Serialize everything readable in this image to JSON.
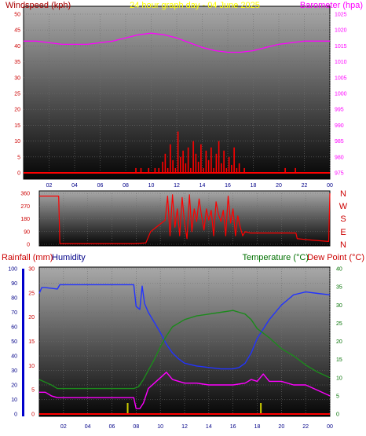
{
  "title": "24 hour graph day - 04 June 2025",
  "colors": {
    "windspeed": "#ff0000",
    "barometer": "#ff00ff",
    "direction": "#ff0000",
    "rainfall": "#cc0000",
    "humidity": "#0000cc",
    "temperature": "#008000",
    "dewpoint": "#cc0000",
    "title": "#ffff00",
    "rain_bar": "#cccc00"
  },
  "chart_data": [
    {
      "type": "line",
      "name": "wind-barometer",
      "title": "24 hour graph day - 04 June 2025",
      "ylabel_left": "Windspeed (kph)",
      "ylabel_right": "Barometer (hpa)",
      "x_ticks": [
        "02",
        "04",
        "06",
        "08",
        "10",
        "12",
        "14",
        "16",
        "18",
        "20",
        "22",
        "00"
      ],
      "xlim": [
        0,
        24
      ],
      "y_left_ticks": [
        "0",
        "5",
        "10",
        "15",
        "20",
        "25",
        "30",
        "35",
        "40",
        "45",
        "50"
      ],
      "ylim_left": [
        0,
        50
      ],
      "y_right_ticks": [
        "975",
        "980",
        "985",
        "990",
        "995",
        "1000",
        "1005",
        "1010",
        "1015",
        "1020",
        "1025"
      ],
      "ylim_right": [
        975,
        1025
      ],
      "grid": true,
      "series": [
        {
          "name": "Barometer (hpa)",
          "axis": "right",
          "x": [
            0,
            1,
            2,
            3,
            4,
            5,
            6,
            7,
            8,
            9,
            10,
            11,
            12,
            13,
            14,
            15,
            16,
            17,
            18,
            19,
            20,
            21,
            22,
            23,
            24
          ],
          "y": [
            1016.5,
            1016.5,
            1016.0,
            1015.5,
            1015.5,
            1015.5,
            1016.0,
            1016.5,
            1017.5,
            1018.5,
            1019.0,
            1018.5,
            1017.5,
            1016.0,
            1014.5,
            1013.5,
            1013.0,
            1013.0,
            1013.5,
            1014.5,
            1015.5,
            1016.0,
            1016.5,
            1016.5,
            1016.5
          ]
        },
        {
          "name": "Windspeed (kph)",
          "axis": "left",
          "x": [
            8.8,
            9.2,
            9.8,
            10.3,
            10.6,
            10.9,
            11.1,
            11.3,
            11.5,
            11.7,
            11.9,
            12.1,
            12.3,
            12.5,
            12.7,
            12.9,
            13.1,
            13.3,
            13.5,
            13.7,
            13.9,
            14.1,
            14.3,
            14.5,
            14.7,
            14.9,
            15.1,
            15.3,
            15.5,
            15.7,
            15.9,
            16.1,
            16.3,
            16.5,
            16.7,
            16.9,
            17.3,
            20.5,
            21.3
          ],
          "y": [
            1.5,
            1.5,
            1.5,
            1.5,
            1.5,
            3.5,
            6,
            1.5,
            9,
            4,
            1.5,
            13,
            5,
            7,
            3,
            8,
            1.5,
            10,
            6,
            3.5,
            9,
            1.5,
            7,
            4,
            8,
            1.5,
            6,
            10,
            3,
            7,
            1.5,
            5,
            2.5,
            8,
            1.5,
            3,
            1.5,
            1.5,
            1.5
          ]
        }
      ]
    },
    {
      "type": "line",
      "name": "wind-direction",
      "y_ticks": [
        "0",
        "90",
        "180",
        "270",
        "360"
      ],
      "ylim": [
        0,
        360
      ],
      "y_labels_right": [
        "N",
        "W",
        "S",
        "E",
        "N"
      ],
      "xlim": [
        0,
        24
      ],
      "series": [
        {
          "name": "Wind direction",
          "x": [
            0,
            1.6,
            1.7,
            7.8,
            8.8,
            9.2,
            9.8,
            10.4,
            10.6,
            10.8,
            11.0,
            11.2,
            11.4,
            11.6,
            11.8,
            12.0,
            12.2,
            12.4,
            12.6,
            12.8,
            13.0,
            13.2,
            13.4,
            13.6,
            13.8,
            14.0,
            14.2,
            14.4,
            14.6,
            14.8,
            15.0,
            15.2,
            15.4,
            15.6,
            15.8,
            16.0,
            16.2,
            16.4,
            16.6,
            16.8,
            17.0,
            17.4,
            17.8,
            18.5,
            19.5,
            20.5,
            21.2,
            21.3,
            22.5,
            23.9,
            24
          ],
          "y": [
            340,
            340,
            5,
            5,
            10,
            90,
            130,
            170,
            340,
            60,
            350,
            120,
            250,
            60,
            330,
            150,
            40,
            350,
            90,
            250,
            160,
            320,
            200,
            100,
            250,
            170,
            240,
            60,
            300,
            210,
            160,
            240,
            60,
            340,
            150,
            250,
            60,
            200,
            120,
            60,
            90,
            80,
            80,
            80,
            80,
            80,
            80,
            40,
            30,
            20,
            360
          ]
        }
      ]
    },
    {
      "type": "line",
      "name": "rain-humidity-temp",
      "ylabel_rainfall": "Rainfall (mm)",
      "ylabel_humidity": "Humidity",
      "ylabel_temperature": "Temperature (°C)",
      "ylabel_dewpoint": "Dew Point (°C)",
      "x_ticks": [
        "02",
        "04",
        "06",
        "08",
        "10",
        "12",
        "14",
        "16",
        "18",
        "20",
        "22",
        "00"
      ],
      "xlim": [
        0,
        24
      ],
      "humidity_ticks": [
        "0",
        "10",
        "20",
        "30",
        "40",
        "50",
        "60",
        "70",
        "80",
        "90",
        "100"
      ],
      "humidity_ylim": [
        0,
        100
      ],
      "rainfall_ticks": [
        "0",
        "5",
        "10",
        "15",
        "20",
        "25",
        "30"
      ],
      "rainfall_ylim": [
        0,
        30
      ],
      "temperature_ticks": [
        "0",
        "5",
        "10",
        "15",
        "20",
        "25",
        "30",
        "35",
        "40"
      ],
      "temperature_ylim": [
        0,
        40
      ],
      "series": [
        {
          "name": "Humidity",
          "axis": "humidity",
          "x": [
            0,
            0.2,
            0.5,
            1.5,
            1.7,
            7.8,
            8.0,
            8.3,
            8.5,
            8.7,
            9.0,
            9.5,
            10.0,
            10.5,
            11.0,
            11.5,
            12.0,
            13.0,
            14.0,
            15.0,
            16.0,
            16.5,
            17.0,
            17.5,
            18.0,
            19.0,
            20.0,
            21.0,
            22.0,
            23.0,
            24.0
          ],
          "y": [
            83,
            87,
            87,
            86,
            89,
            89,
            74,
            72,
            88,
            76,
            70,
            63,
            56,
            48,
            42,
            38,
            35,
            33,
            32,
            31,
            31,
            32,
            35,
            42,
            52,
            65,
            75,
            82,
            84,
            83,
            82
          ]
        },
        {
          "name": "Temperature (°C)",
          "axis": "temperature",
          "x": [
            0,
            1,
            1.5,
            7.8,
            8.2,
            8.6,
            9.0,
            9.5,
            10.0,
            10.5,
            11.0,
            12.0,
            13.0,
            14.0,
            15.0,
            16.0,
            16.5,
            17.0,
            17.5,
            18.0,
            19.0,
            20.0,
            21.0,
            22.0,
            23.0,
            24.0
          ],
          "y": [
            9.5,
            8,
            7,
            7,
            7.5,
            9.5,
            12,
            15,
            18.5,
            21.5,
            24,
            26,
            27,
            27.5,
            28,
            28.5,
            28,
            27.5,
            26,
            23.5,
            21,
            18,
            16,
            13.5,
            11.5,
            10
          ]
        },
        {
          "name": "Dew Point (°C)",
          "axis": "temperature",
          "x": [
            0,
            0.5,
            1,
            1.5,
            7.8,
            8.0,
            8.3,
            8.6,
            9.0,
            9.5,
            10.0,
            10.5,
            11.0,
            12.0,
            13.0,
            14.0,
            15.0,
            16.0,
            17.0,
            17.5,
            18.0,
            18.5,
            19.0,
            20.0,
            21.0,
            22.0,
            23.0,
            24.0
          ],
          "y": [
            6,
            6,
            5,
            4.5,
            4.5,
            1.5,
            1.5,
            3,
            7,
            8.5,
            10,
            11.5,
            9.5,
            8.5,
            8.5,
            8,
            8,
            8,
            8.5,
            9.5,
            9,
            11,
            9,
            9,
            8,
            8,
            6.5,
            5
          ]
        },
        {
          "name": "Rainfall (mm)",
          "axis": "rainfall",
          "x": [
            0,
            24
          ],
          "y": [
            0,
            0
          ]
        }
      ],
      "markers": [
        {
          "x": 7.3,
          "name": "rain-bar"
        },
        {
          "x": 18.3,
          "name": "rain-bar"
        }
      ]
    }
  ]
}
